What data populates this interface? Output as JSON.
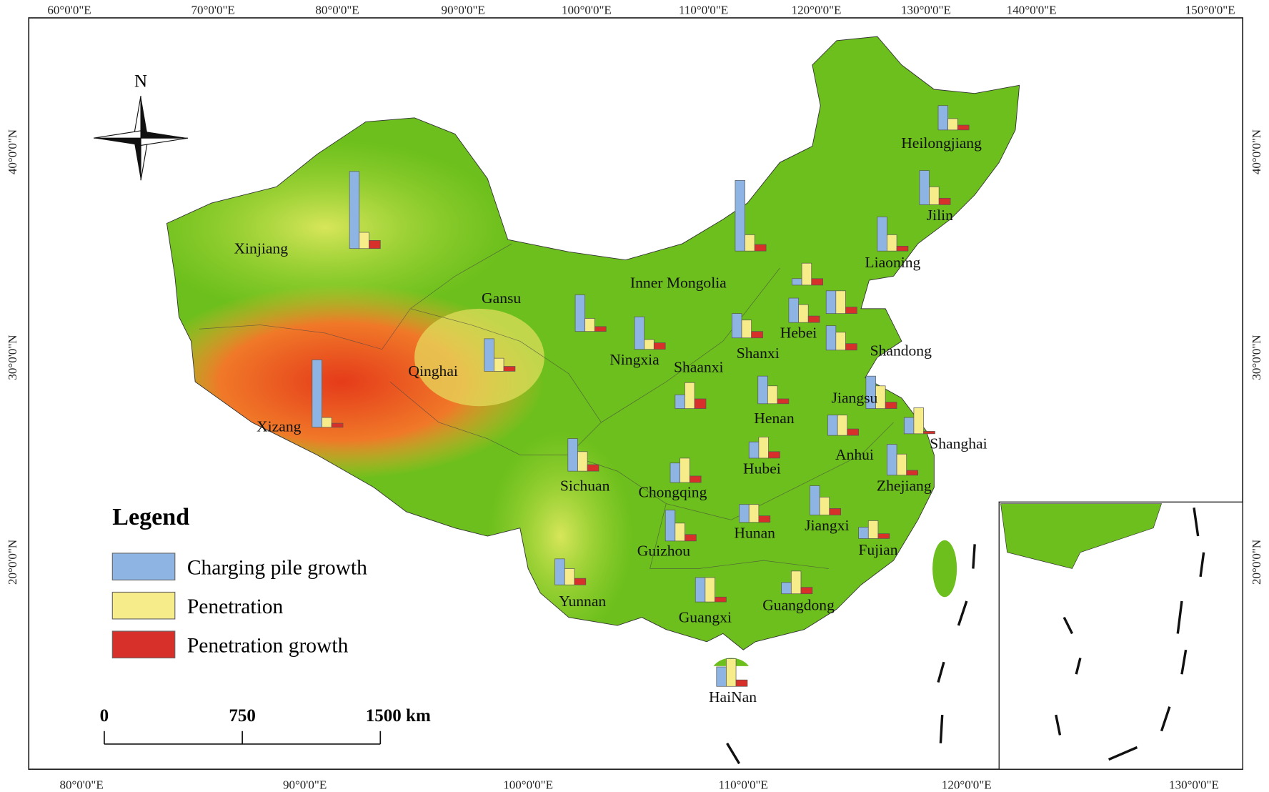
{
  "map": {
    "graticule": {
      "top": [
        "60°0'0\"E",
        "70°0'0\"E",
        "80°0'0\"E",
        "90°0'0\"E",
        "100°0'0\"E",
        "110°0'0\"E",
        "120°0'0\"E",
        "130°0'0\"E",
        "140°0'0\"E",
        "150°0'0\"E"
      ],
      "bottom": [
        "80°0'0\"E",
        "90°0'0\"E",
        "100°0'0\"E",
        "110°0'0\"E",
        "120°0'0\"E",
        "130°0'0\"E"
      ],
      "left": [
        "40°0'0\"N",
        "30°0'0\"N",
        "20°0'0\"N"
      ],
      "right": [
        "40°0'0\"N",
        "30°0'0\"N",
        "20°0'0\"N"
      ]
    },
    "north": "N",
    "legend_title": "Legend",
    "scale_bar": [
      "0",
      "750",
      "1500 km"
    ]
  },
  "chart_data": {
    "type": "bar",
    "categories": [
      "Xinjiang",
      "Xizang",
      "Qinghai",
      "Gansu",
      "Inner Mongolia",
      "Ningxia",
      "Shaanxi",
      "Shanxi",
      "Hebei",
      null,
      null,
      "Shandong",
      "Liaoning",
      "Jilin",
      "Heilongjiang",
      "Jiangsu",
      "Henan",
      "Anhui",
      "Shanghai",
      "Hubei",
      "Zhejiang",
      "Sichuan",
      "Chongqing",
      "Hunan",
      "Jiangxi",
      "Guizhou",
      "Fujian",
      "Yunnan",
      "Guangxi",
      "Guangdong",
      "HaiNan"
    ],
    "series": [
      {
        "name": "Charging pile growth",
        "color": "#8db4e2",
        "values": [
          95,
          83,
          40,
          45,
          87,
          40,
          17,
          30,
          30,
          8,
          28,
          30,
          42,
          42,
          30,
          40,
          34,
          25,
          20,
          20,
          38,
          40,
          24,
          22,
          36,
          38,
          14,
          32,
          30,
          14,
          24
        ]
      },
      {
        "name": "Penetration",
        "color": "#f7ec8a",
        "values": [
          20,
          12,
          16,
          16,
          20,
          12,
          32,
          22,
          22,
          27,
          28,
          22,
          20,
          22,
          14,
          28,
          22,
          25,
          32,
          26,
          26,
          24,
          30,
          22,
          22,
          22,
          22,
          20,
          30,
          28,
          34
        ]
      },
      {
        "name": "Penetration growth",
        "color": "#d7302a",
        "values": [
          10,
          5,
          6,
          6,
          8,
          8,
          12,
          8,
          8,
          8,
          8,
          8,
          6,
          8,
          6,
          8,
          6,
          8,
          3,
          8,
          6,
          8,
          8,
          8,
          8,
          8,
          6,
          8,
          6,
          8,
          8
        ]
      }
    ]
  }
}
